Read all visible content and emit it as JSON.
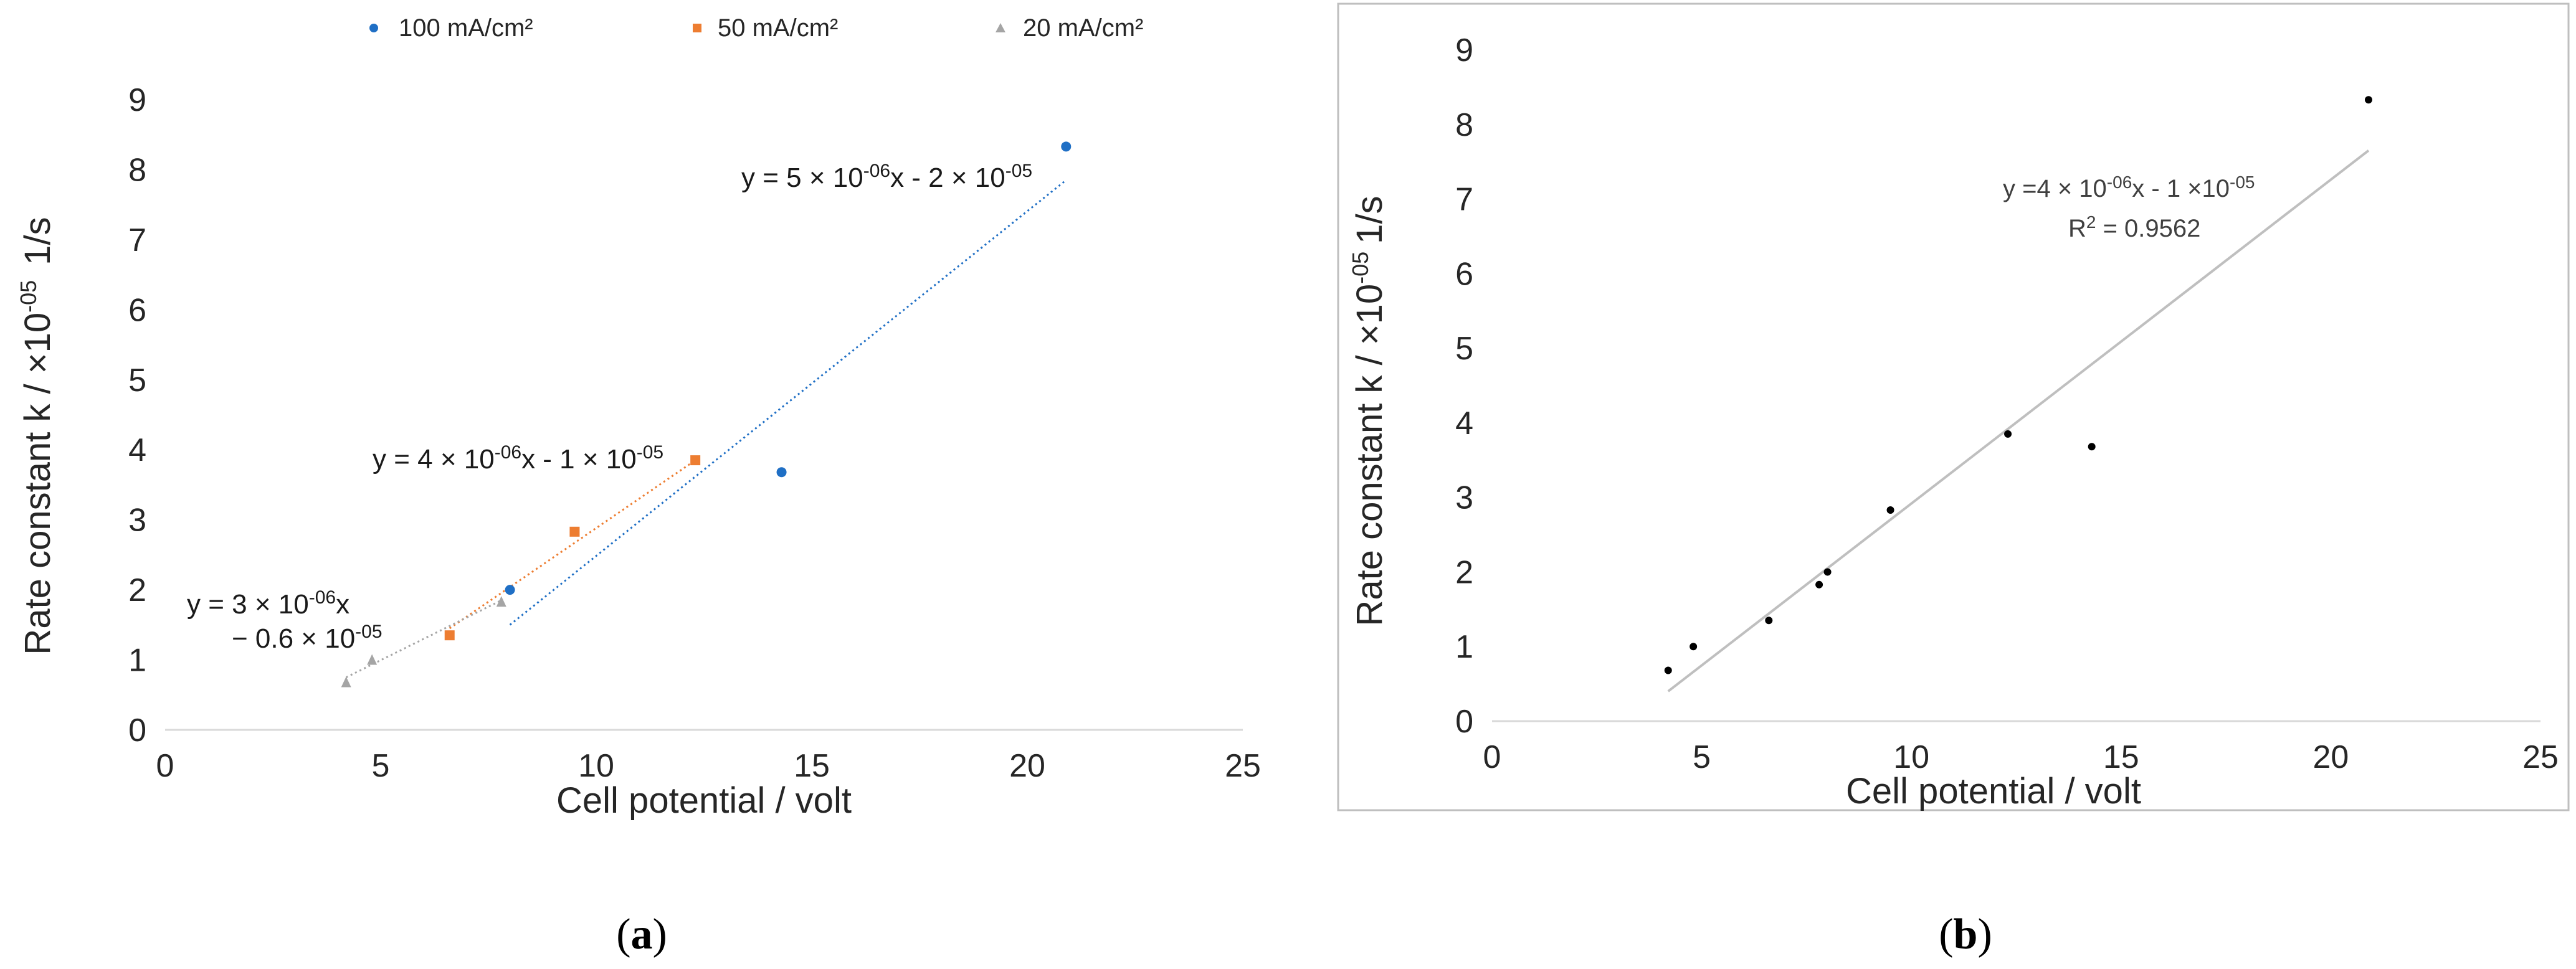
{
  "chart_data": [
    {
      "panel": "a",
      "type": "scatter",
      "xlabel": "Cell potential / volt",
      "ylabel_main": "Rate constant k / ×10",
      "ylabel_exp": "-05",
      "ylabel_unit": "1/s",
      "xlim": [
        0,
        25
      ],
      "ylim": [
        0,
        9
      ],
      "x_ticks": [
        "0",
        "5",
        "10",
        "15",
        "20",
        "25"
      ],
      "y_ticks": [
        "0",
        "1",
        "2",
        "3",
        "4",
        "5",
        "6",
        "7",
        "8",
        "9"
      ],
      "legend_position": "top",
      "series": [
        {
          "name": "100 mA/cm²",
          "color": "#1f6fc5",
          "marker": "circle",
          "x": [
            8.0,
            14.3,
            20.9
          ],
          "y": [
            2.0,
            3.68,
            8.33
          ],
          "trendline": {
            "x": [
              8.0,
              20.9
            ],
            "y": [
              1.5,
              7.85
            ]
          },
          "equation": {
            "p1": "y = 5 × 10",
            "e1": "-06",
            "p2": "x - 2 × 10",
            "e2": "-05"
          }
        },
        {
          "name": "50 mA/cm²",
          "color": "#ed7d31",
          "marker": "square",
          "x": [
            6.6,
            9.5,
            12.3
          ],
          "y": [
            1.35,
            2.83,
            3.85
          ],
          "trendline": {
            "x": [
              6.6,
              12.3
            ],
            "y": [
              1.45,
              3.85
            ]
          },
          "equation": {
            "p1": "y = 4 × 10",
            "e1": "-06",
            "p2": "x - 1 × 10",
            "e2": "-05"
          }
        },
        {
          "name": "20 mA/cm²",
          "color": "#a5a5a5",
          "marker": "triangle",
          "x": [
            4.2,
            4.8,
            7.8
          ],
          "y": [
            0.68,
            1.0,
            1.83
          ],
          "trendline": {
            "x": [
              4.2,
              7.8
            ],
            "y": [
              0.75,
              1.85
            ]
          },
          "equation_line1": "y = 3 × 10",
          "equation_line1_exp": "-06",
          "equation_line1_tail": "x",
          "equation_line2": "− 0.6 × 10",
          "equation_line2_exp": "-05"
        }
      ]
    },
    {
      "panel": "b",
      "type": "scatter",
      "xlabel": "Cell potential / volt",
      "ylabel_main": "Rate constant k / ×10",
      "ylabel_exp": "-05",
      "ylabel_unit": "1/s",
      "xlim": [
        0,
        25
      ],
      "ylim": [
        0,
        9
      ],
      "x_ticks": [
        "0",
        "5",
        "10",
        "15",
        "20",
        "25"
      ],
      "y_ticks": [
        "0",
        "1",
        "2",
        "3",
        "4",
        "5",
        "6",
        "7",
        "8",
        "9"
      ],
      "series": [
        {
          "color": "#000000",
          "marker": "circle",
          "x": [
            4.2,
            4.8,
            6.6,
            7.8,
            8.0,
            9.5,
            12.3,
            14.3,
            20.9
          ],
          "y": [
            0.68,
            1.0,
            1.35,
            1.83,
            2.0,
            2.83,
            3.85,
            3.68,
            8.33
          ],
          "trendline": {
            "x": [
              4.2,
              20.9
            ],
            "y": [
              0.4,
              7.65
            ]
          }
        }
      ],
      "equation": {
        "p1": "y =4 × 10",
        "e1": "-06",
        "p2": "x - 1 ×10",
        "e2": "-05"
      },
      "r_squared": {
        "p1": "R",
        "e1": "2",
        "p2": " = 0.9562"
      }
    }
  ],
  "captions": {
    "a": "a",
    "b": "b"
  }
}
